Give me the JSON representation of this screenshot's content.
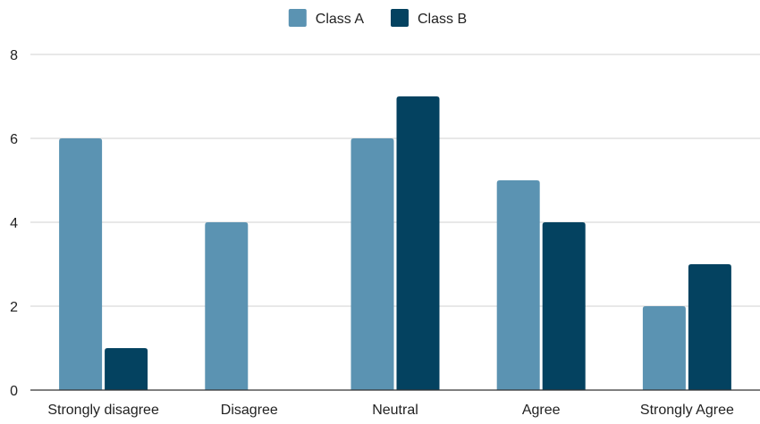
{
  "chart_data": {
    "type": "bar",
    "title": "",
    "xlabel": "",
    "ylabel": "",
    "categories": [
      "Strongly disagree",
      "Disagree",
      "Neutral",
      "Agree",
      "Strongly Agree"
    ],
    "series": [
      {
        "name": "Class A",
        "color": "#5b93b2",
        "values": [
          6,
          4,
          6,
          5,
          2
        ]
      },
      {
        "name": "Class B",
        "color": "#044260",
        "values": [
          1,
          0,
          7,
          4,
          3
        ]
      }
    ],
    "ylim": [
      0,
      8
    ],
    "yticks": [
      0,
      2,
      4,
      6,
      8
    ],
    "grid": true,
    "legend_position": "top-center",
    "gridline_color": "#d0d0d0",
    "axis_color": "#333333",
    "text_color": "#222222"
  }
}
